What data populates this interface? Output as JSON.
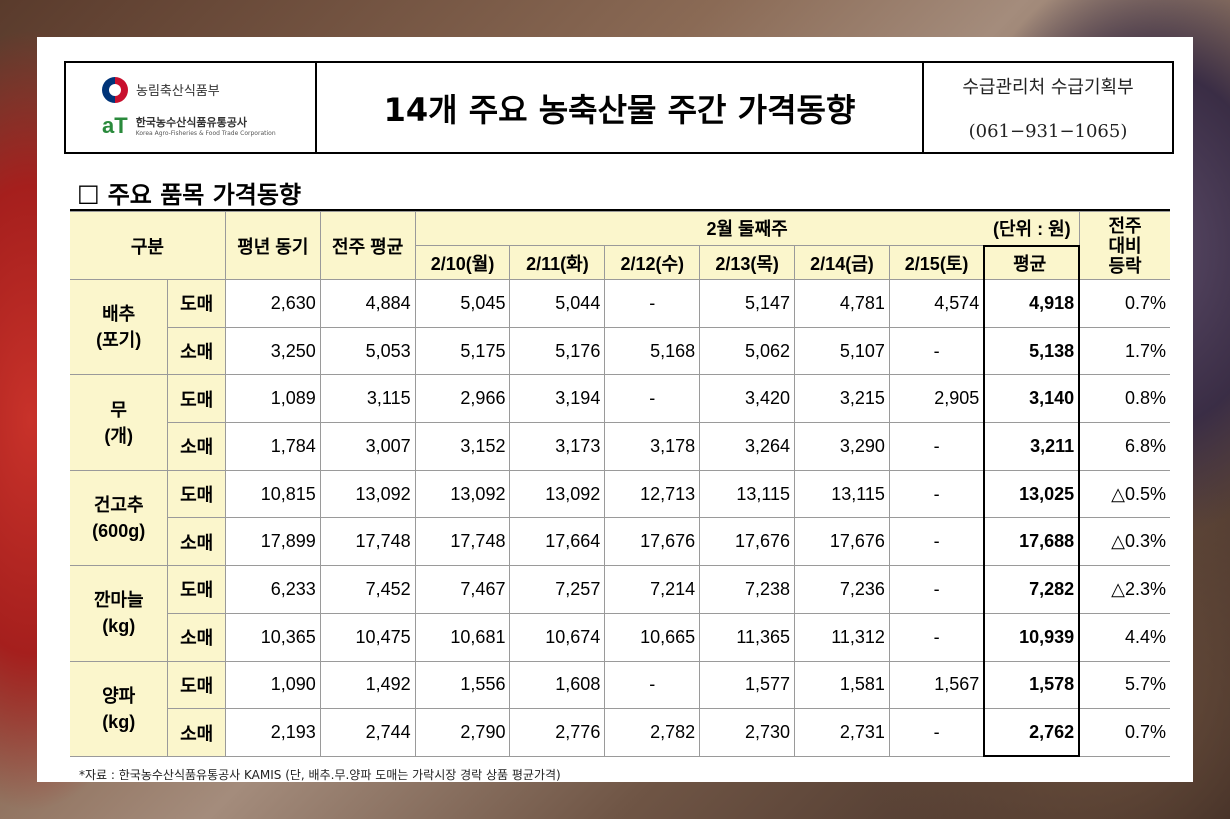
{
  "header": {
    "ministry_name": "농림축산식품부",
    "agency_name": "한국농수산식품유통공사",
    "agency_mark": "aT",
    "agency_subtitle": "Korea Agro-Fisheries & Food Trade Corporation",
    "title": "14개 주요 농축산물 주간 가격동향",
    "department": "수급관리처 수급기획부",
    "phone": "(061−931−1065)"
  },
  "section": {
    "box": "□",
    "title": "주요 품목 가격동향"
  },
  "table": {
    "headers": {
      "category": "구분",
      "last_year": "평년 동기",
      "prev_week": "전주 평균",
      "week_title": "2월 둘째주",
      "unit": "(단위 : 원)",
      "change_line1": "전주",
      "change_line2": "대비",
      "change_line3": "등락",
      "days": [
        "2/10(월)",
        "2/11(화)",
        "2/12(수)",
        "2/13(목)",
        "2/14(금)",
        "2/15(토)"
      ],
      "average": "평균"
    },
    "groups": [
      {
        "name": "배추",
        "unit": "(포기)",
        "rows": [
          {
            "type": "도매",
            "last_year": "2,630",
            "prev_week": "4,884",
            "days": [
              "5,045",
              "5,044",
              "-",
              "5,147",
              "4,781",
              "4,574"
            ],
            "average": "4,918",
            "change": "0.7%"
          },
          {
            "type": "소매",
            "last_year": "3,250",
            "prev_week": "5,053",
            "days": [
              "5,175",
              "5,176",
              "5,168",
              "5,062",
              "5,107",
              "-"
            ],
            "average": "5,138",
            "change": "1.7%"
          }
        ]
      },
      {
        "name": "무",
        "unit": "(개)",
        "rows": [
          {
            "type": "도매",
            "last_year": "1,089",
            "prev_week": "3,115",
            "days": [
              "2,966",
              "3,194",
              "-",
              "3,420",
              "3,215",
              "2,905"
            ],
            "average": "3,140",
            "change": "0.8%"
          },
          {
            "type": "소매",
            "last_year": "1,784",
            "prev_week": "3,007",
            "days": [
              "3,152",
              "3,173",
              "3,178",
              "3,264",
              "3,290",
              "-"
            ],
            "average": "3,211",
            "change": "6.8%"
          }
        ]
      },
      {
        "name": "건고추",
        "unit": "(600g)",
        "rows": [
          {
            "type": "도매",
            "last_year": "10,815",
            "prev_week": "13,092",
            "days": [
              "13,092",
              "13,092",
              "12,713",
              "13,115",
              "13,115",
              "-"
            ],
            "average": "13,025",
            "change": "△0.5%"
          },
          {
            "type": "소매",
            "last_year": "17,899",
            "prev_week": "17,748",
            "days": [
              "17,748",
              "17,664",
              "17,676",
              "17,676",
              "17,676",
              "-"
            ],
            "average": "17,688",
            "change": "△0.3%"
          }
        ]
      },
      {
        "name": "깐마늘",
        "unit": "(kg)",
        "rows": [
          {
            "type": "도매",
            "last_year": "6,233",
            "prev_week": "7,452",
            "days": [
              "7,467",
              "7,257",
              "7,214",
              "7,238",
              "7,236",
              "-"
            ],
            "average": "7,282",
            "change": "△2.3%"
          },
          {
            "type": "소매",
            "last_year": "10,365",
            "prev_week": "10,475",
            "days": [
              "10,681",
              "10,674",
              "10,665",
              "11,365",
              "11,312",
              "-"
            ],
            "average": "10,939",
            "change": "4.4%"
          }
        ]
      },
      {
        "name": "양파",
        "unit": "(kg)",
        "rows": [
          {
            "type": "도매",
            "last_year": "1,090",
            "prev_week": "1,492",
            "days": [
              "1,556",
              "1,608",
              "-",
              "1,577",
              "1,581",
              "1,567"
            ],
            "average": "1,578",
            "change": "5.7%"
          },
          {
            "type": "소매",
            "last_year": "2,193",
            "prev_week": "2,744",
            "days": [
              "2,790",
              "2,776",
              "2,782",
              "2,730",
              "2,731",
              "-"
            ],
            "average": "2,762",
            "change": "0.7%"
          }
        ]
      }
    ]
  },
  "footnote": "*자료 : 한국농수산식품유통공사 KAMIS (단, 배추.무.양파 도매는 가락시장 경락 상품 평균가격)"
}
